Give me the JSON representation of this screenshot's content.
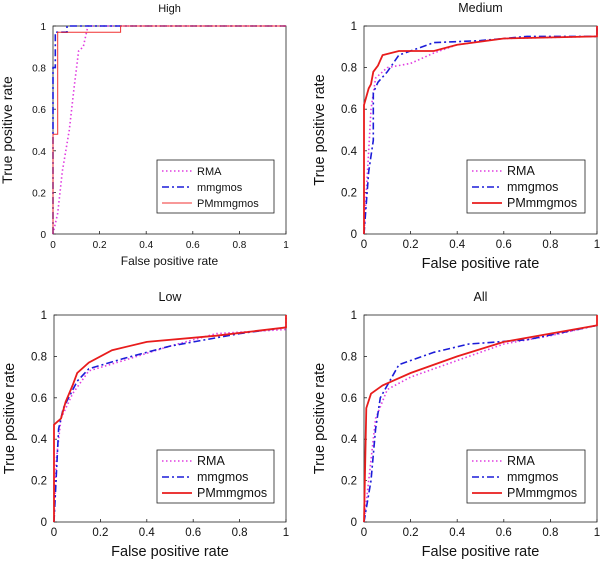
{
  "chart_data": [
    {
      "type": "line",
      "title": "High",
      "xlabel": "False positive rate",
      "ylabel": "True positive rate",
      "xlim": [
        0,
        1
      ],
      "ylim": [
        0,
        1
      ],
      "xticks": [
        "0",
        "0.2",
        "0.4",
        "0.6",
        "0.8",
        "1"
      ],
      "yticks": [
        "0",
        "0.2",
        "0.4",
        "0.6",
        "0.8",
        "1"
      ],
      "legend_position": "bottom-right",
      "series": [
        {
          "name": "RMA",
          "color": "#e03ce0",
          "style": "dotted",
          "points": [
            [
              0,
              0
            ],
            [
              0.02,
              0.1
            ],
            [
              0.04,
              0.3
            ],
            [
              0.07,
              0.5
            ],
            [
              0.09,
              0.7
            ],
            [
              0.11,
              0.88
            ],
            [
              0.13,
              0.9
            ],
            [
              0.15,
              1
            ],
            [
              1,
              1
            ]
          ]
        },
        {
          "name": "mmgmos",
          "color": "#1c1cd8",
          "style": "dashdot",
          "points": [
            [
              0,
              0
            ],
            [
              0,
              0.8
            ],
            [
              0.01,
              0.8
            ],
            [
              0.01,
              0.97
            ],
            [
              0.06,
              0.97
            ],
            [
              0.06,
              1
            ],
            [
              1,
              1
            ]
          ]
        },
        {
          "name": "PMmmgmos",
          "color": "#f03030",
          "style": "solid-thin",
          "points": [
            [
              0,
              0
            ],
            [
              0,
              0.48
            ],
            [
              0.02,
              0.48
            ],
            [
              0.02,
              0.97
            ],
            [
              0.29,
              0.97
            ],
            [
              0.29,
              1
            ],
            [
              1,
              1
            ]
          ]
        }
      ]
    },
    {
      "type": "line",
      "title": "Medium",
      "xlabel": "False positive rate",
      "ylabel": "True positive rate",
      "xlim": [
        0,
        1
      ],
      "ylim": [
        0,
        1
      ],
      "xticks": [
        "0",
        "0.2",
        "0.4",
        "0.6",
        "0.8",
        "1"
      ],
      "yticks": [
        "0",
        "0.2",
        "0.4",
        "0.6",
        "0.8",
        "1"
      ],
      "legend_position": "bottom-right",
      "series": [
        {
          "name": "RMA",
          "color": "#e03ce0",
          "style": "dotted",
          "points": [
            [
              0,
              0
            ],
            [
              0.01,
              0.2
            ],
            [
              0.02,
              0.4
            ],
            [
              0.03,
              0.6
            ],
            [
              0.05,
              0.75
            ],
            [
              0.1,
              0.8
            ],
            [
              0.2,
              0.82
            ],
            [
              0.3,
              0.87
            ],
            [
              0.4,
              0.91
            ],
            [
              0.6,
              0.94
            ],
            [
              1,
              0.95
            ],
            [
              1,
              1
            ]
          ]
        },
        {
          "name": "mmgmos",
          "color": "#1c1cd8",
          "style": "dashdot",
          "points": [
            [
              0,
              0
            ],
            [
              0.02,
              0.3
            ],
            [
              0.04,
              0.45
            ],
            [
              0.04,
              0.68
            ],
            [
              0.06,
              0.73
            ],
            [
              0.1,
              0.78
            ],
            [
              0.15,
              0.86
            ],
            [
              0.3,
              0.92
            ],
            [
              0.5,
              0.93
            ],
            [
              0.7,
              0.95
            ],
            [
              1,
              0.95
            ],
            [
              1,
              1
            ]
          ]
        },
        {
          "name": "PMmmgmos",
          "color": "#e81c1c",
          "style": "solid",
          "points": [
            [
              0,
              0
            ],
            [
              0,
              0.62
            ],
            [
              0.02,
              0.7
            ],
            [
              0.03,
              0.72
            ],
            [
              0.04,
              0.78
            ],
            [
              0.06,
              0.81
            ],
            [
              0.08,
              0.86
            ],
            [
              0.15,
              0.88
            ],
            [
              0.3,
              0.88
            ],
            [
              0.4,
              0.91
            ],
            [
              0.6,
              0.94
            ],
            [
              1,
              0.95
            ],
            [
              1,
              1
            ]
          ]
        }
      ]
    },
    {
      "type": "line",
      "title": "Low",
      "xlabel": "False positive rate",
      "ylabel": "True positive rate",
      "xlim": [
        0,
        1
      ],
      "ylim": [
        0,
        1
      ],
      "xticks": [
        "0",
        "0.2",
        "0.4",
        "0.6",
        "0.8",
        "1"
      ],
      "yticks": [
        "0",
        "0.2",
        "0.4",
        "0.6",
        "0.8",
        "1"
      ],
      "legend_position": "bottom-right",
      "series": [
        {
          "name": "RMA",
          "color": "#e03ce0",
          "style": "dotted",
          "points": [
            [
              0,
              0
            ],
            [
              0.01,
              0.3
            ],
            [
              0.03,
              0.5
            ],
            [
              0.08,
              0.62
            ],
            [
              0.15,
              0.73
            ],
            [
              0.3,
              0.78
            ],
            [
              0.5,
              0.85
            ],
            [
              0.7,
              0.91
            ],
            [
              1,
              0.93
            ],
            [
              1,
              1
            ]
          ]
        },
        {
          "name": "mmgmos",
          "color": "#1c1cd8",
          "style": "dashdot",
          "points": [
            [
              0,
              0
            ],
            [
              0.02,
              0.45
            ],
            [
              0.04,
              0.55
            ],
            [
              0.1,
              0.68
            ],
            [
              0.15,
              0.74
            ],
            [
              0.3,
              0.79
            ],
            [
              0.5,
              0.85
            ],
            [
              0.8,
              0.91
            ],
            [
              1,
              0.94
            ]
          ]
        },
        {
          "name": "PMmmgmos",
          "color": "#e81c1c",
          "style": "solid",
          "points": [
            [
              0,
              0
            ],
            [
              0,
              0.47
            ],
            [
              0.03,
              0.5
            ],
            [
              0.05,
              0.58
            ],
            [
              0.08,
              0.66
            ],
            [
              0.1,
              0.72
            ],
            [
              0.15,
              0.77
            ],
            [
              0.25,
              0.83
            ],
            [
              0.4,
              0.87
            ],
            [
              0.7,
              0.9
            ],
            [
              1,
              0.94
            ],
            [
              1,
              1
            ]
          ]
        }
      ]
    },
    {
      "type": "line",
      "title": "All",
      "xlabel": "False positive rate",
      "ylabel": "True positive rate",
      "xlim": [
        0,
        1
      ],
      "ylim": [
        0,
        1
      ],
      "xticks": [
        "0",
        "0.2",
        "0.4",
        "0.6",
        "0.8",
        "1"
      ],
      "yticks": [
        "0",
        "0.2",
        "0.4",
        "0.6",
        "0.8",
        "1"
      ],
      "legend_position": "bottom-right",
      "series": [
        {
          "name": "RMA",
          "color": "#e03ce0",
          "style": "dotted",
          "points": [
            [
              0,
              0
            ],
            [
              0.02,
              0.2
            ],
            [
              0.05,
              0.5
            ],
            [
              0.1,
              0.64
            ],
            [
              0.2,
              0.7
            ],
            [
              0.4,
              0.78
            ],
            [
              0.6,
              0.86
            ],
            [
              0.8,
              0.9
            ],
            [
              1,
              0.95
            ]
          ]
        },
        {
          "name": "mmgmos",
          "color": "#1c1cd8",
          "style": "dashdot",
          "points": [
            [
              0,
              0
            ],
            [
              0.03,
              0.2
            ],
            [
              0.05,
              0.45
            ],
            [
              0.07,
              0.6
            ],
            [
              0.15,
              0.76
            ],
            [
              0.3,
              0.82
            ],
            [
              0.45,
              0.86
            ],
            [
              0.7,
              0.88
            ],
            [
              1,
              0.95
            ]
          ]
        },
        {
          "name": "PMmmgmos",
          "color": "#e81c1c",
          "style": "solid",
          "points": [
            [
              0,
              0
            ],
            [
              0.01,
              0.55
            ],
            [
              0.03,
              0.62
            ],
            [
              0.08,
              0.66
            ],
            [
              0.2,
              0.72
            ],
            [
              0.4,
              0.8
            ],
            [
              0.6,
              0.87
            ],
            [
              0.8,
              0.91
            ],
            [
              1,
              0.95
            ],
            [
              1,
              1
            ]
          ]
        }
      ]
    }
  ]
}
